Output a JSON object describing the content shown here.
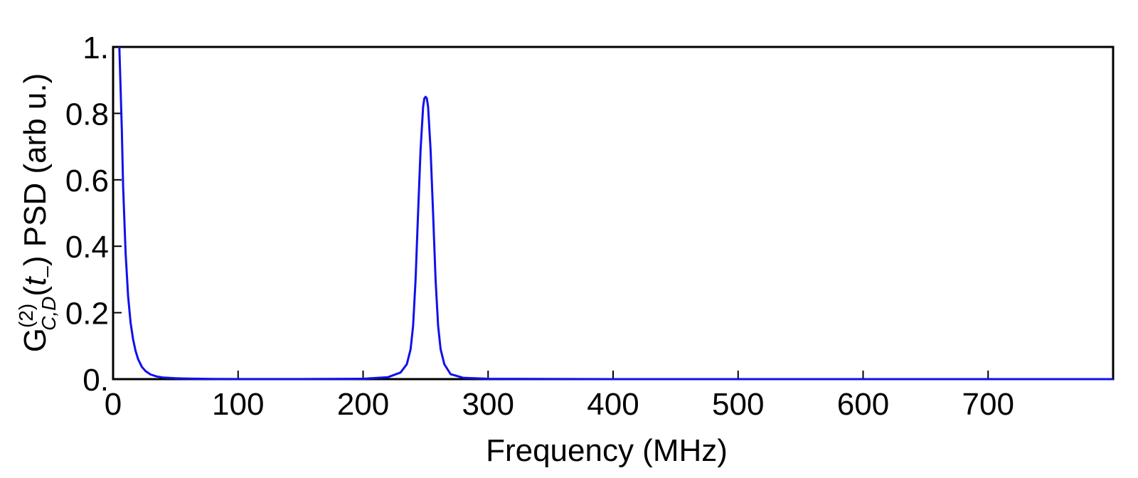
{
  "chart_data": {
    "type": "line",
    "title": "",
    "xlabel": "Frequency (MHz)",
    "ylabel": {
      "base": "G",
      "superscript": "(2)",
      "subscript": "C,D",
      "argument_open": "(",
      "argument": "t",
      "argument_sub": "–",
      "argument_close": ")",
      "rest": " PSD (arb u.)"
    },
    "xlim": [
      0,
      800
    ],
    "ylim": [
      0,
      1.0
    ],
    "x_ticks": [
      0,
      100,
      200,
      300,
      400,
      500,
      600,
      700
    ],
    "x_tick_labels": [
      "0",
      "100",
      "200",
      "300",
      "400",
      "500",
      "600",
      "700"
    ],
    "y_ticks": [
      0,
      0.2,
      0.4,
      0.6,
      0.8,
      1.0
    ],
    "y_tick_labels": [
      "0.",
      "0.2",
      "0.4",
      "0.6",
      "0.8",
      "1."
    ],
    "grid": false,
    "legend": "none",
    "series": [
      {
        "color": "#1010ee",
        "x": [
          5,
          7,
          8,
          10,
          12,
          14,
          16,
          18,
          20,
          23,
          26,
          30,
          35,
          40,
          50,
          60,
          80,
          100,
          150,
          200,
          220,
          230,
          235,
          238,
          240,
          242,
          244,
          246,
          248,
          249,
          250,
          251,
          252,
          254,
          256,
          258,
          260,
          262,
          265,
          270,
          280,
          300,
          400,
          500,
          600,
          700,
          800
        ],
        "y": [
          1.0,
          0.75,
          0.58,
          0.38,
          0.25,
          0.17,
          0.12,
          0.085,
          0.06,
          0.037,
          0.024,
          0.014,
          0.008,
          0.005,
          0.0025,
          0.0015,
          0.0005,
          0.0003,
          0.0002,
          0.001,
          0.006,
          0.02,
          0.045,
          0.09,
          0.16,
          0.3,
          0.5,
          0.69,
          0.82,
          0.845,
          0.85,
          0.845,
          0.82,
          0.69,
          0.5,
          0.3,
          0.16,
          0.09,
          0.045,
          0.015,
          0.004,
          0.001,
          0.0001,
          0.0,
          0.0,
          0.0,
          0.0
        ]
      }
    ]
  }
}
